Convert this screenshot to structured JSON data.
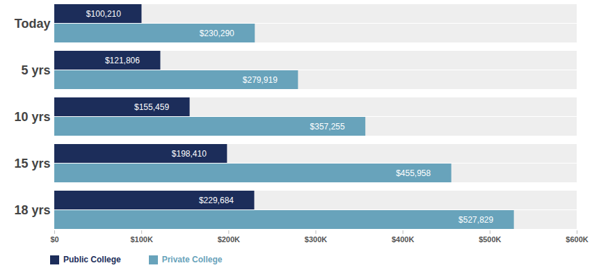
{
  "chart_data": {
    "type": "bar",
    "orientation": "horizontal",
    "data_labels": true,
    "grid": false,
    "legend": "bottom-left",
    "categories": [
      "Today",
      "5 yrs",
      "10 yrs",
      "15 yrs",
      "18 yrs"
    ],
    "series": [
      {
        "name": "Public College",
        "color": "#1c2d5a",
        "values": [
          100210,
          121806,
          155459,
          198410,
          229684
        ],
        "value_labels": [
          "$100,210",
          "$121,806",
          "$155,459",
          "$198,410",
          "$229,684"
        ]
      },
      {
        "name": "Private College",
        "color": "#68a3bb",
        "values": [
          230290,
          279919,
          357255,
          455958,
          527829
        ],
        "value_labels": [
          "$230,290",
          "$279,919",
          "$357,255",
          "$455,958",
          "$527,829"
        ]
      }
    ],
    "xlim": [
      0,
      600000
    ],
    "xticks": [
      {
        "value": 0,
        "label": "$0"
      },
      {
        "value": 100000,
        "label": "$100K"
      },
      {
        "value": 200000,
        "label": "$200K"
      },
      {
        "value": 300000,
        "label": "$300K"
      },
      {
        "value": 400000,
        "label": "$400K"
      },
      {
        "value": 500000,
        "label": "$500K"
      },
      {
        "value": 600000,
        "label": "$600K"
      }
    ]
  }
}
